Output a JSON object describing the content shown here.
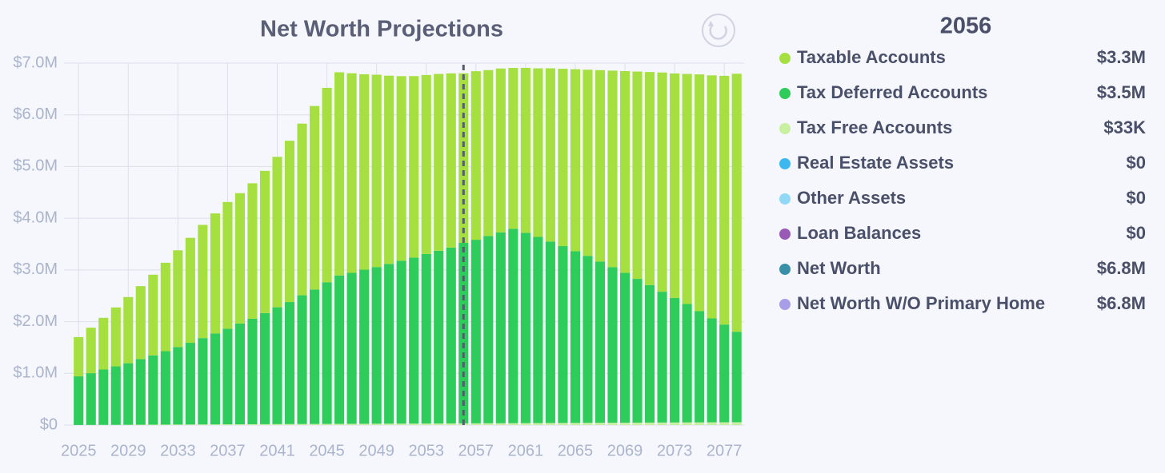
{
  "chart_data": {
    "type": "stacked_bar",
    "title": "Net Worth Projections",
    "x": [
      2025,
      2026,
      2027,
      2028,
      2029,
      2030,
      2031,
      2032,
      2033,
      2034,
      2035,
      2036,
      2037,
      2038,
      2039,
      2040,
      2041,
      2042,
      2043,
      2044,
      2045,
      2046,
      2047,
      2048,
      2049,
      2050,
      2051,
      2052,
      2053,
      2054,
      2055,
      2056,
      2057,
      2058,
      2059,
      2060,
      2061,
      2062,
      2063,
      2064,
      2065,
      2066,
      2067,
      2068,
      2069,
      2070,
      2071,
      2072,
      2073,
      2074,
      2075,
      2076,
      2077,
      2078
    ],
    "xlim": [
      2024.6,
      2078.6
    ],
    "xticks": [
      2025,
      2029,
      2033,
      2037,
      2041,
      2045,
      2049,
      2053,
      2057,
      2061,
      2065,
      2069,
      2073,
      2077
    ],
    "ylim": [
      0,
      7000000
    ],
    "yticks": [
      {
        "value": 0,
        "label": "$0"
      },
      {
        "value": 1000000,
        "label": "$1.0M"
      },
      {
        "value": 2000000,
        "label": "$2.0M"
      },
      {
        "value": 3000000,
        "label": "$3.0M"
      },
      {
        "value": 4000000,
        "label": "$4.0M"
      },
      {
        "value": 5000000,
        "label": "$5.0M"
      },
      {
        "value": 6000000,
        "label": "$6.0M"
      },
      {
        "value": 7000000,
        "label": "$7.0M"
      }
    ],
    "grid": true,
    "marker_x": 2056,
    "series": [
      {
        "name": "Taxable Accounts",
        "color": "#a6e040",
        "legend_value": "$3.3M",
        "values": [
          760000,
          880000,
          1000000,
          1140000,
          1280000,
          1410000,
          1560000,
          1710000,
          1870000,
          2030000,
          2190000,
          2320000,
          2450000,
          2520000,
          2620000,
          2750000,
          2910000,
          3120000,
          3320000,
          3550000,
          3760000,
          3930000,
          3860000,
          3780000,
          3720000,
          3640000,
          3570000,
          3510000,
          3460000,
          3420000,
          3370000,
          3280000,
          3260000,
          3210000,
          3170000,
          3110000,
          3190000,
          3260000,
          3350000,
          3430000,
          3520000,
          3600000,
          3700000,
          3800000,
          3900000,
          4010000,
          4120000,
          4240000,
          4340000,
          4450000,
          4580000,
          4700000,
          4810000,
          4990000
        ]
      },
      {
        "name": "Tax Deferred Accounts",
        "color": "#2ecc5a",
        "legend_value": "$3.5M",
        "values": [
          940000,
          1000000,
          1070000,
          1130000,
          1190000,
          1270000,
          1340000,
          1420000,
          1500000,
          1580000,
          1670000,
          1760000,
          1850000,
          1950000,
          2040000,
          2150000,
          2260000,
          2360000,
          2490000,
          2600000,
          2740000,
          2870000,
          2920000,
          2980000,
          3030000,
          3090000,
          3150000,
          3210000,
          3280000,
          3340000,
          3400000,
          3490000,
          3550000,
          3620000,
          3690000,
          3760000,
          3680000,
          3600000,
          3510000,
          3420000,
          3320000,
          3230000,
          3120000,
          3010000,
          2900000,
          2780000,
          2660000,
          2530000,
          2410000,
          2290000,
          2150000,
          2010000,
          1890000,
          1750000
        ]
      },
      {
        "name": "Tax Free Accounts",
        "color": "#c8f0a0",
        "legend_value": "$33K",
        "values": [
          2000,
          3000,
          4000,
          5000,
          6000,
          7000,
          8000,
          9000,
          10000,
          11000,
          12000,
          13000,
          14000,
          15000,
          16000,
          17000,
          18000,
          19000,
          20000,
          21000,
          22000,
          23000,
          24000,
          25000,
          26000,
          27000,
          28000,
          29000,
          30000,
          31000,
          32000,
          33000,
          34000,
          35000,
          36000,
          37000,
          38000,
          39000,
          40000,
          41000,
          42000,
          43000,
          44000,
          45000,
          46000,
          47000,
          48000,
          49000,
          50000,
          51000,
          52000,
          53000,
          54000,
          55000
        ]
      }
    ],
    "legend_only": [
      {
        "name": "Real Estate Assets",
        "color": "#3bb8f0",
        "legend_value": "$0"
      },
      {
        "name": "Other Assets",
        "color": "#90d8f5",
        "legend_value": "$0"
      },
      {
        "name": "Loan Balances",
        "color": "#9b59b6",
        "legend_value": "$0"
      },
      {
        "name": "Net Worth",
        "color": "#3a8fa8",
        "legend_value": "$6.8M"
      },
      {
        "name": "Net Worth W/O Primary Home",
        "color": "#a89ee8",
        "legend_value": "$6.8M"
      }
    ]
  }
}
